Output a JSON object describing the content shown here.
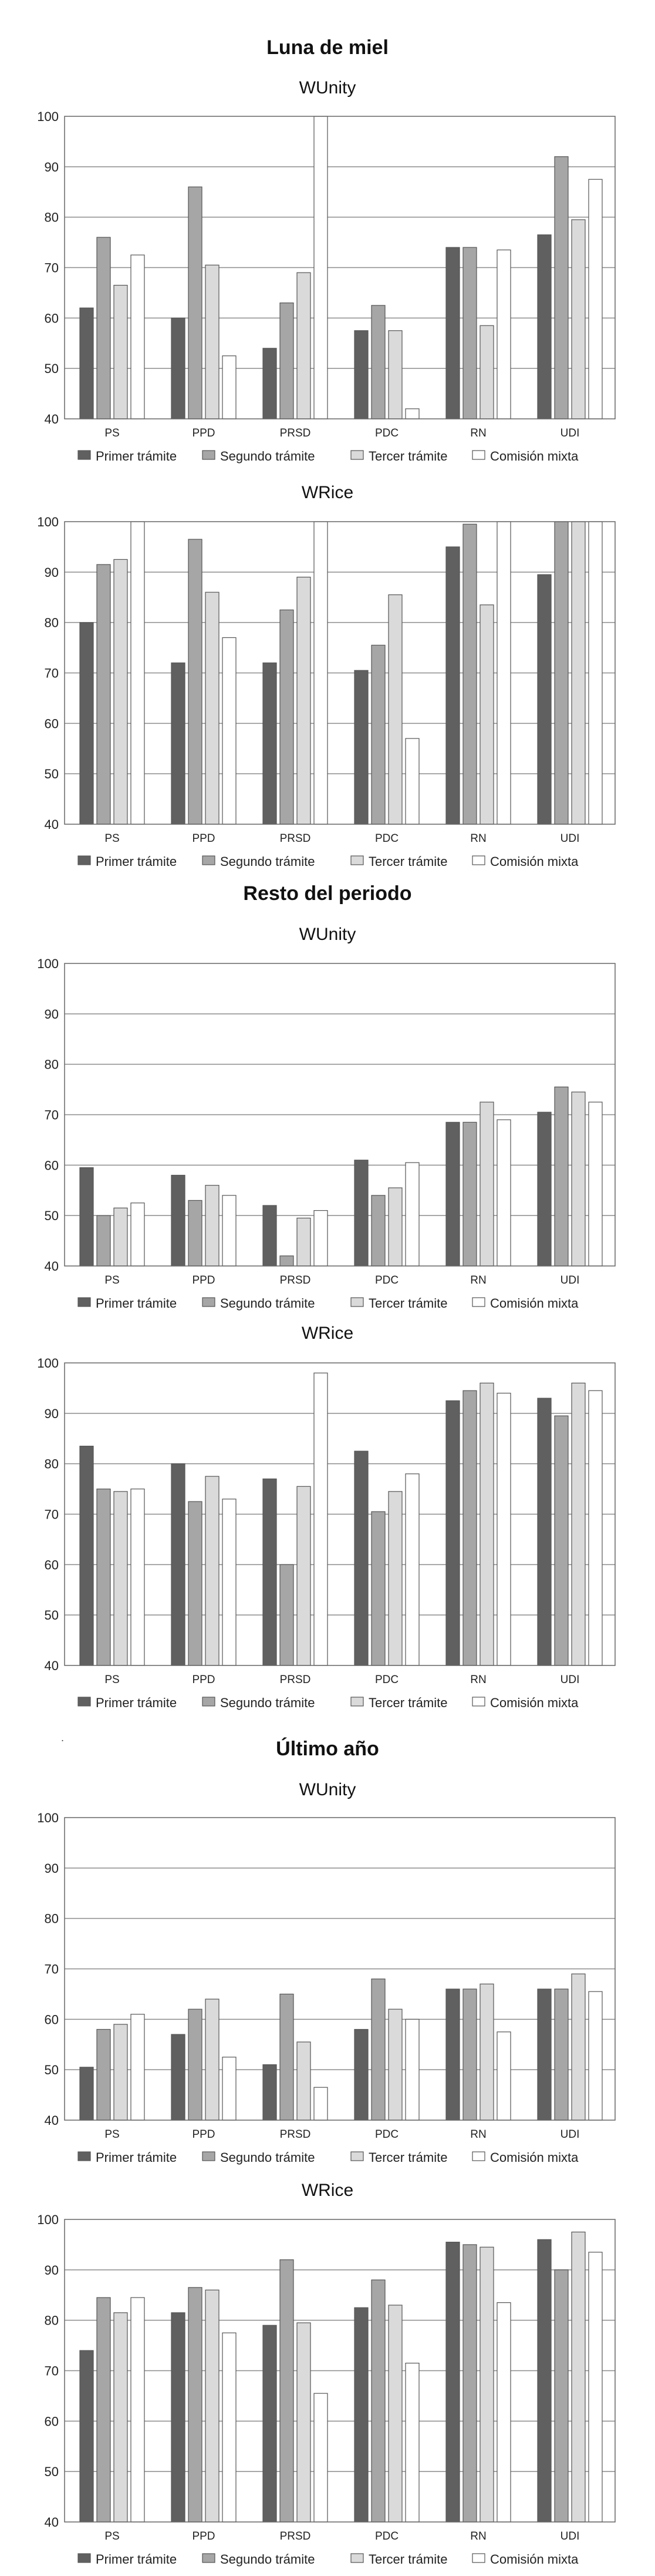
{
  "sections": [
    {
      "title": "Luna de miel"
    },
    {
      "title": "Resto del periodo"
    },
    {
      "title": "Último año"
    }
  ],
  "dot_mark": ".",
  "colors": {
    "s1": "#606060",
    "s2": "#a6a6a6",
    "s3": "#dadada",
    "s4": "#ffffff",
    "border": "#555555",
    "grid": "#8c8c8c",
    "frame": "#666666"
  },
  "chart_data": [
    {
      "type": "bar",
      "section": "Luna de miel",
      "title": "WUnity",
      "categories": [
        "PS",
        "PPD",
        "PRSD",
        "PDC",
        "RN",
        "UDI"
      ],
      "ylim": [
        40,
        100
      ],
      "yticks": [
        40,
        50,
        60,
        70,
        80,
        90,
        100
      ],
      "series": [
        {
          "name": "Primer trámite",
          "values": [
            62,
            60,
            54,
            57.5,
            74,
            76.5
          ]
        },
        {
          "name": "Segundo trámite",
          "values": [
            76,
            86,
            63,
            62.5,
            74,
            92
          ]
        },
        {
          "name": "Tercer trámite",
          "values": [
            66.5,
            70.5,
            69,
            57.5,
            58.5,
            79.5
          ]
        },
        {
          "name": "Comisión mixta",
          "values": [
            72.5,
            52.5,
            100,
            42,
            73.5,
            87.5
          ]
        }
      ]
    },
    {
      "type": "bar",
      "section": "Luna de miel",
      "title": "WRice",
      "categories": [
        "PS",
        "PPD",
        "PRSD",
        "PDC",
        "RN",
        "UDI"
      ],
      "ylim": [
        40,
        100
      ],
      "yticks": [
        40,
        50,
        60,
        70,
        80,
        90,
        100
      ],
      "series": [
        {
          "name": "Primer trámite",
          "values": [
            80,
            72,
            72,
            70.5,
            95,
            89.5
          ]
        },
        {
          "name": "Segundo trámite",
          "values": [
            91.5,
            96.5,
            82.5,
            75.5,
            99.5,
            100
          ]
        },
        {
          "name": "Tercer trámite",
          "values": [
            92.5,
            86,
            89,
            85.5,
            83.5,
            100
          ]
        },
        {
          "name": "Comisión mixta",
          "values": [
            100,
            77,
            100,
            57,
            100,
            100
          ]
        }
      ]
    },
    {
      "type": "bar",
      "section": "Resto del periodo",
      "title": "WUnity",
      "categories": [
        "PS",
        "PPD",
        "PRSD",
        "PDC",
        "RN",
        "UDI"
      ],
      "ylim": [
        40,
        100
      ],
      "yticks": [
        40,
        50,
        60,
        70,
        80,
        90,
        100
      ],
      "series": [
        {
          "name": "Primer trámite",
          "values": [
            59.5,
            58,
            52,
            61,
            68.5,
            70.5
          ]
        },
        {
          "name": "Segundo trámite",
          "values": [
            50,
            53,
            42,
            54,
            68.5,
            75.5
          ]
        },
        {
          "name": "Tercer trámite",
          "values": [
            51.5,
            56,
            49.5,
            55.5,
            72.5,
            74.5
          ]
        },
        {
          "name": "Comisión mixta",
          "values": [
            52.5,
            54,
            51,
            60.5,
            69,
            72.5
          ]
        }
      ]
    },
    {
      "type": "bar",
      "section": "Resto del periodo",
      "title": "WRice",
      "categories": [
        "PS",
        "PPD",
        "PRSD",
        "PDC",
        "RN",
        "UDI"
      ],
      "ylim": [
        40,
        100
      ],
      "yticks": [
        40,
        50,
        60,
        70,
        80,
        90,
        100
      ],
      "series": [
        {
          "name": "Primer trámite",
          "values": [
            83.5,
            80,
            77,
            82.5,
            92.5,
            93
          ]
        },
        {
          "name": "Segundo trámite",
          "values": [
            75,
            72.5,
            60,
            70.5,
            94.5,
            89.5
          ]
        },
        {
          "name": "Tercer trámite",
          "values": [
            74.5,
            77.5,
            75.5,
            74.5,
            96,
            96
          ]
        },
        {
          "name": "Comisión mixta",
          "values": [
            75,
            73,
            98,
            78,
            94,
            94.5
          ]
        }
      ]
    },
    {
      "type": "bar",
      "section": "Último año",
      "title": "WUnity",
      "categories": [
        "PS",
        "PPD",
        "PRSD",
        "PDC",
        "RN",
        "UDI"
      ],
      "ylim": [
        40,
        100
      ],
      "yticks": [
        40,
        50,
        60,
        70,
        80,
        90,
        100
      ],
      "series": [
        {
          "name": "Primer trámite",
          "values": [
            50.5,
            57,
            51,
            58,
            66,
            66
          ]
        },
        {
          "name": "Segundo trámite",
          "values": [
            58,
            62,
            65,
            68,
            66,
            66
          ]
        },
        {
          "name": "Tercer trámite",
          "values": [
            59,
            64,
            55.5,
            62,
            67,
            69
          ]
        },
        {
          "name": "Comisión mixta",
          "values": [
            61,
            52.5,
            46.5,
            60,
            57.5,
            65.5
          ]
        }
      ]
    },
    {
      "type": "bar",
      "section": "Último año",
      "title": "WRice",
      "categories": [
        "PS",
        "PPD",
        "PRSD",
        "PDC",
        "RN",
        "UDI"
      ],
      "ylim": [
        40,
        100
      ],
      "yticks": [
        40,
        50,
        60,
        70,
        80,
        90,
        100
      ],
      "series": [
        {
          "name": "Primer trámite",
          "values": [
            74,
            81.5,
            79,
            82.5,
            95.5,
            96
          ]
        },
        {
          "name": "Segundo trámite",
          "values": [
            84.5,
            86.5,
            92,
            88,
            95,
            90
          ]
        },
        {
          "name": "Tercer trámite",
          "values": [
            81.5,
            86,
            79.5,
            83,
            94.5,
            97.5
          ]
        },
        {
          "name": "Comisión mixta",
          "values": [
            84.5,
            77.5,
            65.5,
            71.5,
            83.5,
            93.5
          ]
        }
      ]
    }
  ]
}
